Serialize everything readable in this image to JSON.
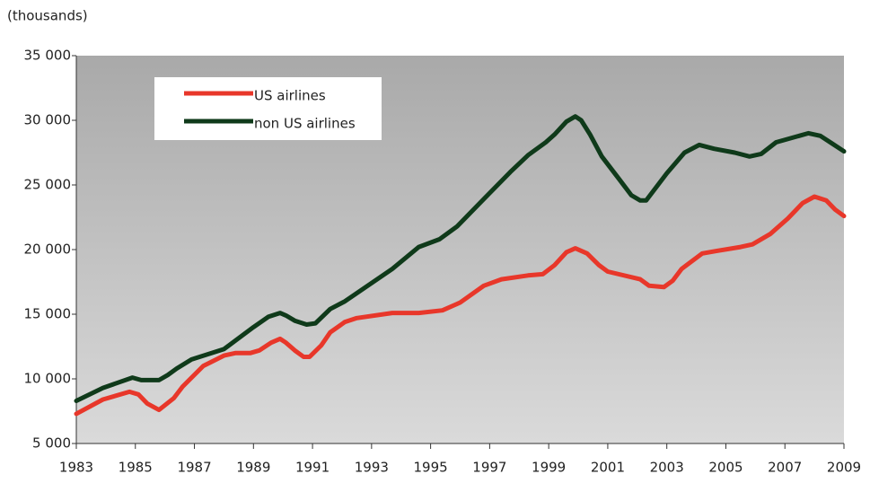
{
  "chart_data": {
    "type": "line",
    "y_label": "(thousands)",
    "xlim": [
      1983,
      2009
    ],
    "xticks": [
      1983,
      1985,
      1987,
      1989,
      1991,
      1993,
      1995,
      1997,
      1999,
      2001,
      2003,
      2005,
      2007,
      2009
    ],
    "ylim": [
      5000,
      35000
    ],
    "yticks": [
      {
        "value": 5000,
        "label": "5 000"
      },
      {
        "value": 10000,
        "label": "10 000"
      },
      {
        "value": 15000,
        "label": "15 000"
      },
      {
        "value": 20000,
        "label": "20 000"
      },
      {
        "value": 25000,
        "label": "25 000"
      },
      {
        "value": 30000,
        "label": "30 000"
      },
      {
        "value": 35000,
        "label": "35 000"
      }
    ],
    "legend": "upper left",
    "series": [
      {
        "name": "US airlines",
        "color": "#e8372a",
        "x": [
          1983.0,
          1983.9,
          1984.8,
          1985.1,
          1985.4,
          1985.8,
          1986.3,
          1986.6,
          1987.3,
          1988.0,
          1988.4,
          1988.9,
          1989.2,
          1989.6,
          1989.9,
          1990.1,
          1990.4,
          1990.7,
          1990.9,
          1991.3,
          1991.6,
          1992.1,
          1992.5,
          1993.7,
          1994.6,
          1995.4,
          1996.0,
          1996.8,
          1997.4,
          1998.3,
          1998.8,
          1999.2,
          1999.6,
          1999.9,
          2000.3,
          2000.7,
          2001.0,
          2002.1,
          2002.4,
          2002.9,
          2003.2,
          2003.5,
          2004.2,
          2004.7,
          2005.5,
          2005.9,
          2006.5,
          2007.1,
          2007.6,
          2008.0,
          2008.4,
          2008.7,
          2009.0
        ],
        "values": [
          7300,
          8400,
          9000,
          8800,
          8100,
          7600,
          8500,
          9400,
          11000,
          11800,
          12000,
          12000,
          12200,
          12800,
          13100,
          12800,
          12200,
          11700,
          11700,
          12600,
          13600,
          14400,
          14700,
          15100,
          15100,
          15300,
          15900,
          17200,
          17700,
          18000,
          18100,
          18800,
          19800,
          20100,
          19700,
          18800,
          18300,
          17700,
          17200,
          17100,
          17600,
          18500,
          19700,
          19900,
          20200,
          20400,
          21200,
          22400,
          23600,
          24100,
          23800,
          23100,
          22600
        ]
      },
      {
        "name": "non US airlines",
        "color": "#0f3a1a",
        "x": [
          1983.0,
          1983.9,
          1984.9,
          1985.2,
          1985.8,
          1986.1,
          1986.4,
          1986.9,
          1988.0,
          1989.0,
          1989.5,
          1989.9,
          1990.1,
          1990.4,
          1990.8,
          1991.1,
          1991.6,
          1992.1,
          1993.7,
          1994.6,
          1995.3,
          1995.9,
          1996.8,
          1997.7,
          1998.3,
          1998.9,
          1999.2,
          1999.6,
          1999.9,
          2000.1,
          2000.4,
          2000.8,
          2001.4,
          2001.8,
          2002.1,
          2002.3,
          2003.0,
          2003.6,
          2004.1,
          2004.6,
          2005.3,
          2005.8,
          2006.2,
          2006.7,
          2007.8,
          2008.2,
          2008.6,
          2009.0
        ],
        "values": [
          8300,
          9300,
          10100,
          9900,
          9900,
          10300,
          10800,
          11500,
          12300,
          14000,
          14800,
          15100,
          14900,
          14500,
          14200,
          14300,
          15400,
          16000,
          18500,
          20200,
          20800,
          21800,
          23900,
          26000,
          27300,
          28300,
          28900,
          29900,
          30300,
          30000,
          28900,
          27200,
          25400,
          24200,
          23800,
          23800,
          25900,
          27500,
          28100,
          27800,
          27500,
          27200,
          27400,
          28300,
          29000,
          28800,
          28200,
          27600
        ]
      }
    ]
  }
}
